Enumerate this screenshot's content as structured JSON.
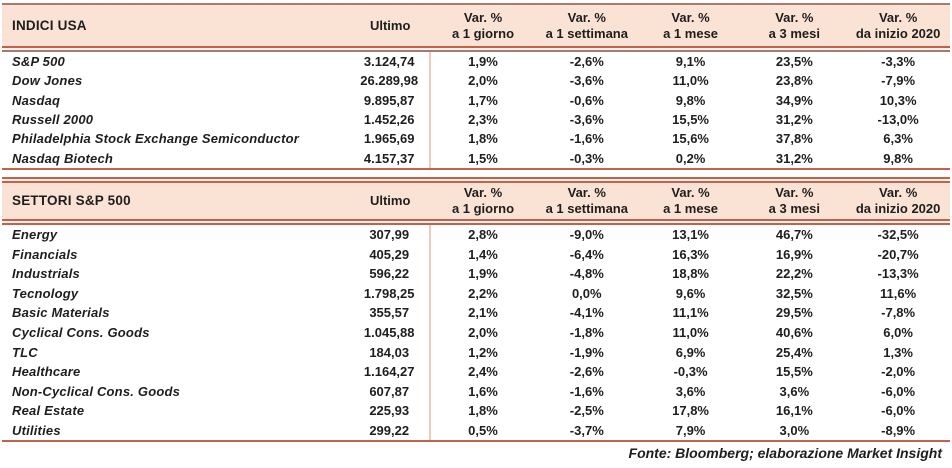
{
  "colors": {
    "line": "#c4614d",
    "line_muted": "#a87a6c",
    "header_bg": "#fae3d4",
    "column_separator": "#f0c9b8",
    "text": "#1e1e1e"
  },
  "columns": {
    "ultimo": "Ultimo",
    "vars": [
      {
        "l1": "Var. %",
        "l2": "a 1 giorno"
      },
      {
        "l1": "Var. %",
        "l2": "a 1 settimana"
      },
      {
        "l1": "Var. %",
        "l2": "a 1 mese"
      },
      {
        "l1": "Var. %",
        "l2": "a 3 mesi"
      },
      {
        "l1": "Var. %",
        "l2": "da inizio 2020"
      }
    ]
  },
  "tables": [
    {
      "title": "INDICI USA",
      "rows": [
        {
          "name": "S&P 500",
          "ultimo": "3.124,74",
          "vars": [
            "1,9%",
            "-2,6%",
            "9,1%",
            "23,5%",
            "-3,3%"
          ]
        },
        {
          "name": "Dow Jones",
          "ultimo": "26.289,98",
          "vars": [
            "2,0%",
            "-3,6%",
            "11,0%",
            "23,8%",
            "-7,9%"
          ]
        },
        {
          "name": "Nasdaq",
          "ultimo": "9.895,87",
          "vars": [
            "1,7%",
            "-0,6%",
            "9,8%",
            "34,9%",
            "10,3%"
          ]
        },
        {
          "name": "Russell 2000",
          "ultimo": "1.452,26",
          "vars": [
            "2,3%",
            "-3,6%",
            "15,5%",
            "31,2%",
            "-13,0%"
          ]
        },
        {
          "name": "Philadelphia Stock Exchange Semiconductor",
          "ultimo": "1.965,69",
          "vars": [
            "1,8%",
            "-1,6%",
            "15,6%",
            "37,8%",
            "6,3%"
          ]
        },
        {
          "name": "Nasdaq Biotech",
          "ultimo": "4.157,37",
          "vars": [
            "1,5%",
            "-0,3%",
            "0,2%",
            "31,2%",
            "9,8%"
          ]
        }
      ]
    },
    {
      "title": "SETTORI S&P 500",
      "rows": [
        {
          "name": "Energy",
          "ultimo": "307,99",
          "vars": [
            "2,8%",
            "-9,0%",
            "13,1%",
            "46,7%",
            "-32,5%"
          ]
        },
        {
          "name": "Financials",
          "ultimo": "405,29",
          "vars": [
            "1,4%",
            "-6,4%",
            "16,3%",
            "16,9%",
            "-20,7%"
          ]
        },
        {
          "name": "Industrials",
          "ultimo": "596,22",
          "vars": [
            "1,9%",
            "-4,8%",
            "18,8%",
            "22,2%",
            "-13,3%"
          ]
        },
        {
          "name": "Tecnology",
          "ultimo": "1.798,25",
          "vars": [
            "2,2%",
            "0,0%",
            "9,6%",
            "32,5%",
            "11,6%"
          ]
        },
        {
          "name": "Basic Materials",
          "ultimo": "355,57",
          "vars": [
            "2,1%",
            "-4,1%",
            "11,1%",
            "29,5%",
            "-7,8%"
          ]
        },
        {
          "name": "Cyclical Cons. Goods",
          "ultimo": "1.045,88",
          "vars": [
            "2,0%",
            "-1,8%",
            "11,0%",
            "40,6%",
            "6,0%"
          ]
        },
        {
          "name": "TLC",
          "ultimo": "184,03",
          "vars": [
            "1,2%",
            "-1,9%",
            "6,9%",
            "25,4%",
            "1,3%"
          ]
        },
        {
          "name": "Healthcare",
          "ultimo": "1.164,27",
          "vars": [
            "2,4%",
            "-2,6%",
            "-0,3%",
            "15,5%",
            "-2,0%"
          ]
        },
        {
          "name": "Non-Cyclical Cons. Goods",
          "ultimo": "607,87",
          "vars": [
            "1,6%",
            "-1,6%",
            "3,6%",
            "3,6%",
            "-6,0%"
          ]
        },
        {
          "name": "Real Estate",
          "ultimo": "225,93",
          "vars": [
            "1,8%",
            "-2,5%",
            "17,8%",
            "16,1%",
            "-6,0%"
          ]
        },
        {
          "name": "Utilities",
          "ultimo": "299,22",
          "vars": [
            "0,5%",
            "-3,7%",
            "7,9%",
            "3,0%",
            "-8,9%"
          ]
        }
      ]
    }
  ],
  "footer": "Fonte: Bloomberg; elaborazione Market Insight"
}
